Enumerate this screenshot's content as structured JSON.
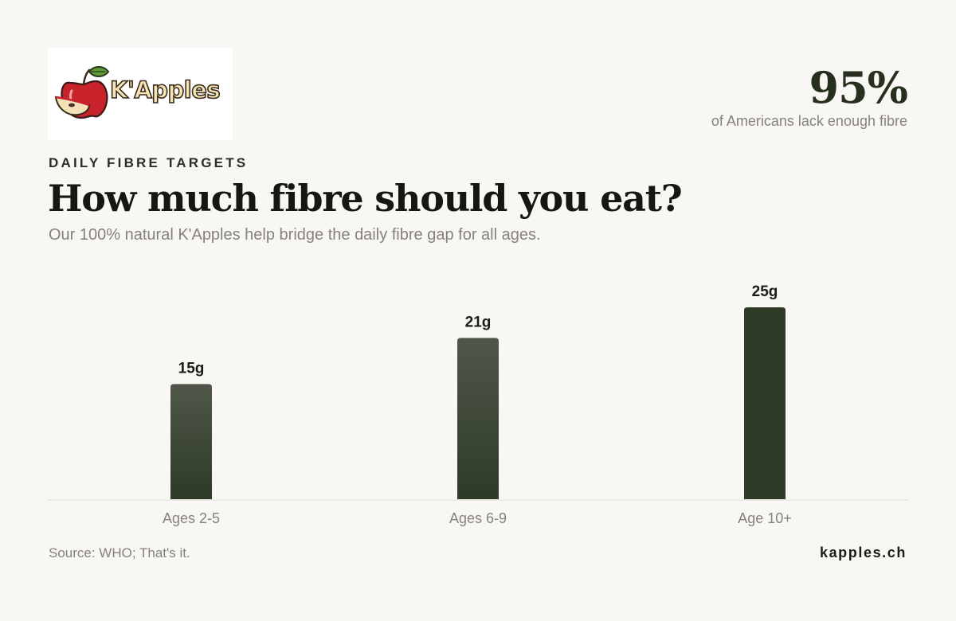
{
  "brand": {
    "logo_text": "K'Apples",
    "domain": "kapples.ch"
  },
  "stat": {
    "value": "95%",
    "caption": "of Americans lack enough fibre"
  },
  "header": {
    "eyebrow": "DAILY FIBRE TARGETS",
    "title": "How much fibre should you eat?",
    "subtitle": "Our 100% natural K'Apples help bridge the daily fibre gap for all ages."
  },
  "chart_data": {
    "type": "bar",
    "categories": [
      "Ages 2-5",
      "Ages 6-9",
      "Age 10+"
    ],
    "values": [
      15,
      21,
      25
    ],
    "value_labels": [
      "15g",
      "21g",
      "25g"
    ],
    "title": "",
    "xlabel": "",
    "ylabel": "",
    "grid": false,
    "legend": "none"
  },
  "footer": {
    "source": "Source: WHO; That's it."
  },
  "colors": {
    "background": "#f8f7f3",
    "bar_dark": "#2e3a26",
    "bar_light": "#50574a",
    "baseline": "#dcdad4",
    "muted_text": "#85827a"
  }
}
